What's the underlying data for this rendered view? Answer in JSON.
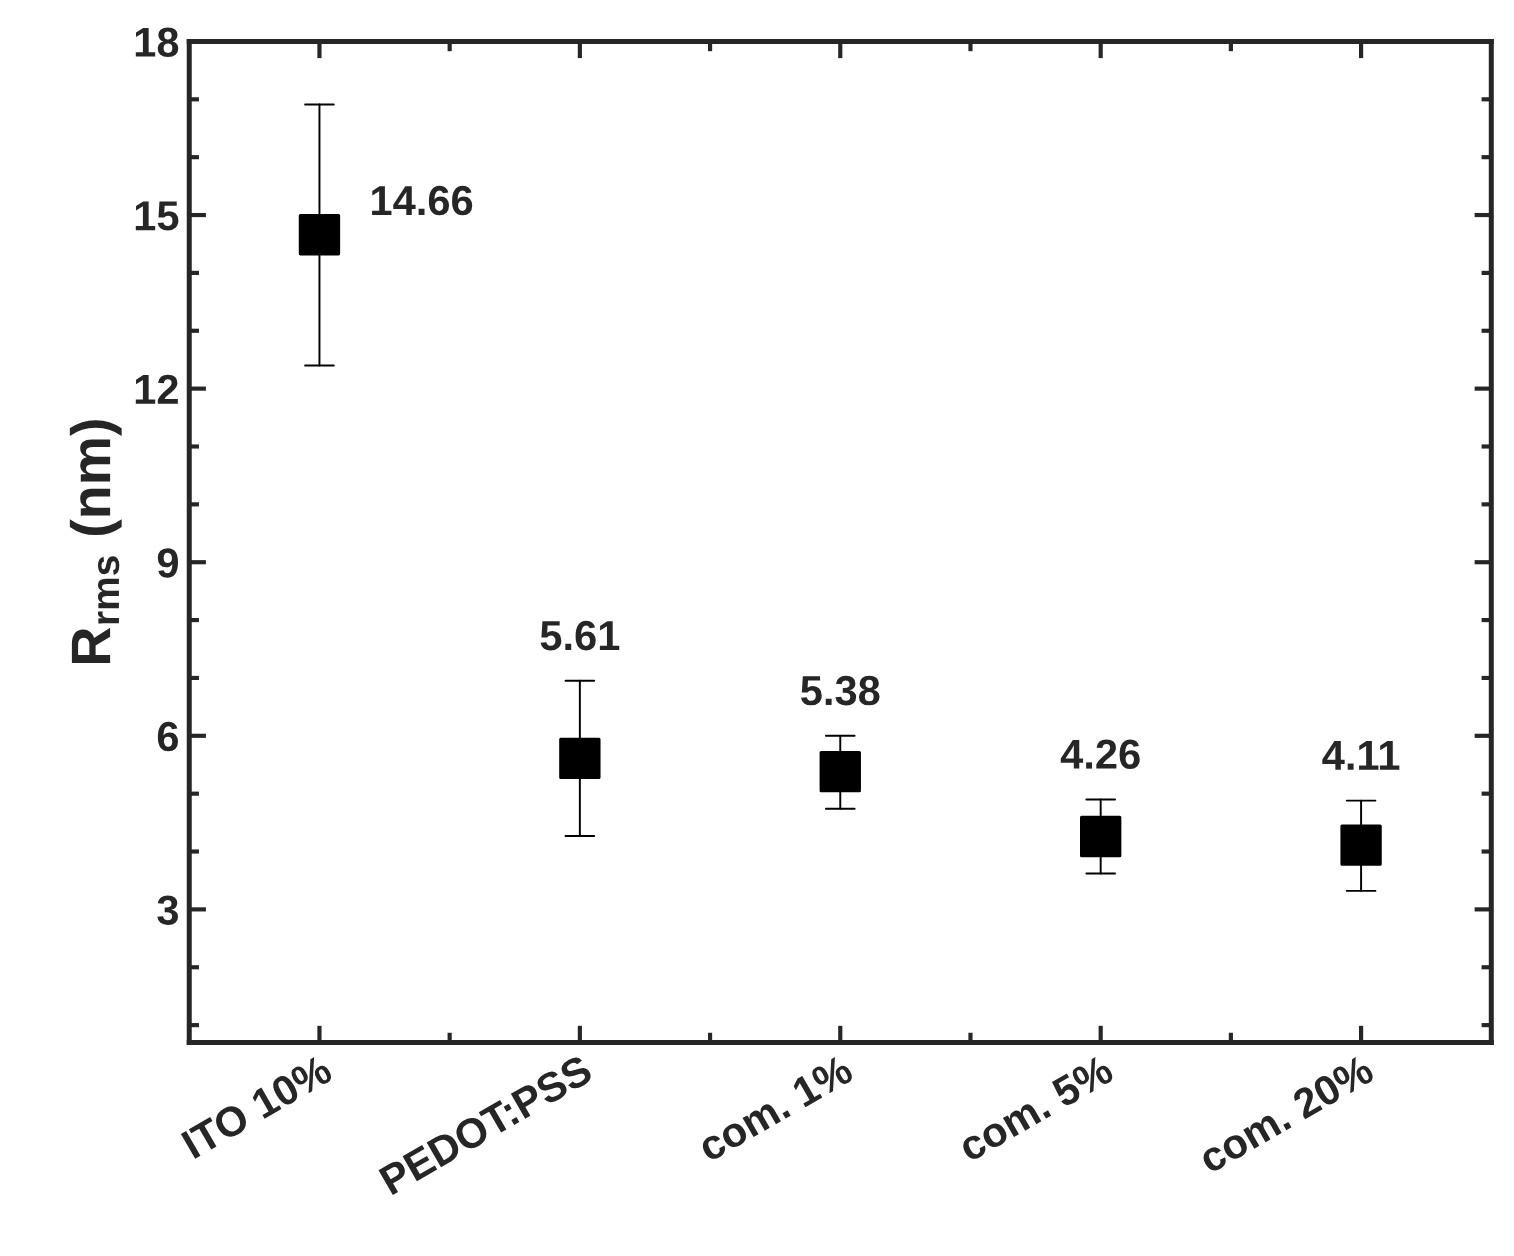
{
  "chart_data": {
    "type": "scatter",
    "ylabel": "R$_{rms}$ (nm)",
    "categories": [
      "ITO 10%",
      "PEDOT:PSS",
      "com. 1%",
      "com. 5%",
      "com. 20%"
    ],
    "values": [
      14.66,
      5.61,
      5.38,
      4.26,
      4.11
    ],
    "errors": [
      [
        12.4,
        16.91
      ],
      [
        4.27,
        6.95
      ],
      [
        4.74,
        6.0
      ],
      [
        3.62,
        4.9
      ],
      [
        3.32,
        4.88
      ]
    ],
    "color": "#000000",
    "marker": "square",
    "data_labels": true,
    "grid": false,
    "legend": false,
    "ylim": [
      0.7,
      18
    ],
    "yticks": [
      {
        "value": 1,
        "label": null
      },
      {
        "value": 2,
        "label": null
      },
      3,
      {
        "value": 4,
        "label": null
      },
      {
        "value": 5,
        "label": null
      },
      6,
      {
        "value": 7,
        "label": null
      },
      {
        "value": 8,
        "label": null
      },
      9,
      {
        "value": 10,
        "label": null
      },
      {
        "value": 11,
        "label": null
      },
      12,
      {
        "value": 13,
        "label": null
      },
      {
        "value": 14,
        "label": null
      },
      15,
      {
        "value": 16,
        "label": null
      },
      {
        "value": 17,
        "label": null
      },
      18
    ]
  }
}
